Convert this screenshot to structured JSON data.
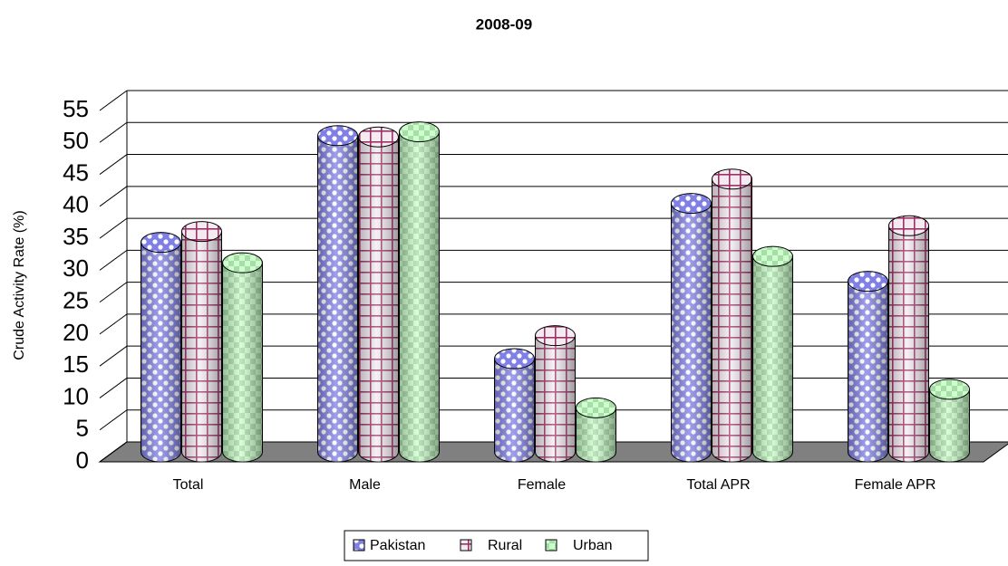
{
  "chart_data": {
    "type": "bar3d",
    "title": "2008-09",
    "y_label": "Crude Activity Rate (%)",
    "categories": [
      "Total",
      "Male",
      "Female",
      "Total APR",
      "Female APR"
    ],
    "series": [
      {
        "name": "Pakistan",
        "color": "#7f7fe6",
        "values": [
          32.8,
          49.5,
          14.6,
          38.9,
          26.7
        ]
      },
      {
        "name": "Rural",
        "color": "#993366",
        "values": [
          34.5,
          49.3,
          18.2,
          42.7,
          35.4
        ]
      },
      {
        "name": "Urban",
        "color": "#ccffcc",
        "values": [
          29.6,
          50.1,
          6.9,
          30.6,
          9.8
        ]
      }
    ],
    "ylim": [
      0,
      55
    ],
    "yticks": [
      0,
      5,
      10,
      15,
      20,
      25,
      30,
      35,
      40,
      45,
      50,
      55
    ],
    "grid": true,
    "legend": "bottom"
  }
}
